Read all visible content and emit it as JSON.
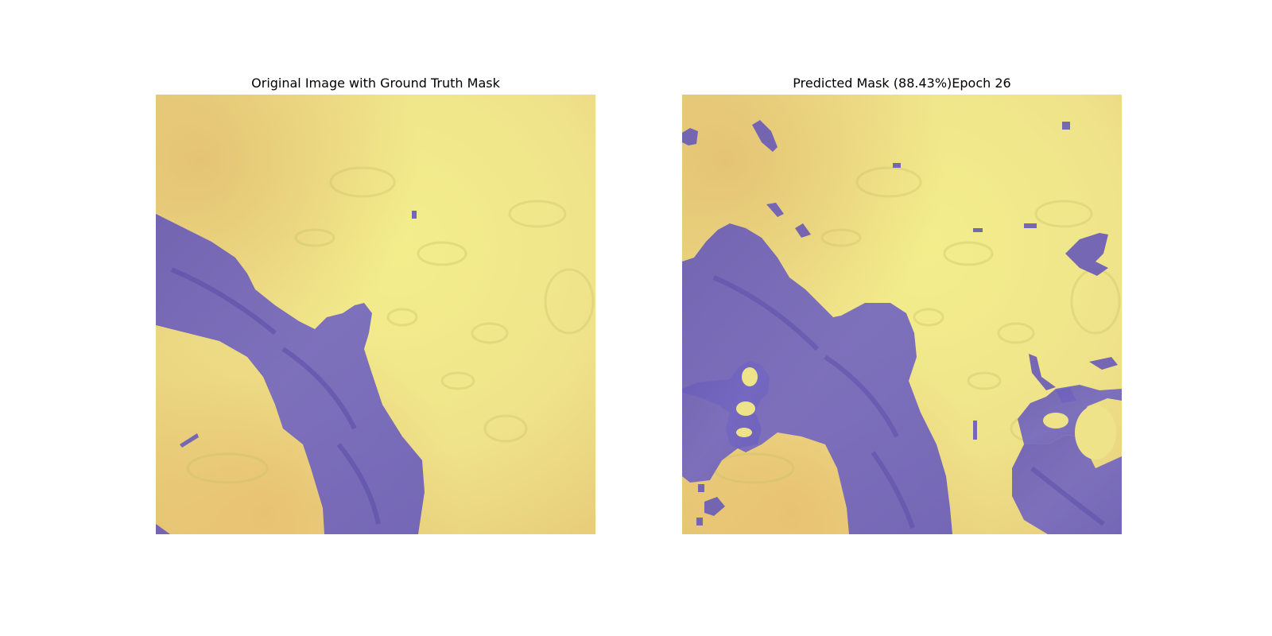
{
  "panels": [
    {
      "title": "Original Image with Ground Truth Mask"
    },
    {
      "title": "Predicted Mask (88.43%)Epoch 26"
    }
  ],
  "colors": {
    "background": "#ffffff",
    "tissue_base": "#f0e98a",
    "tissue_warm": "#e8c873",
    "tissue_shadow": "#cfc36a",
    "mask_overlay": "#6b5fb8"
  }
}
